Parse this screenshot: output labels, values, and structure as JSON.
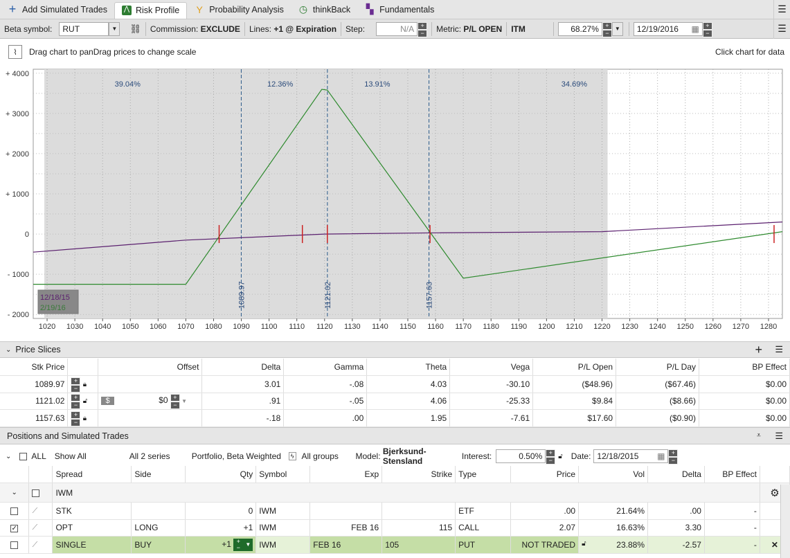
{
  "tabs": [
    {
      "label": "Add Simulated Trades",
      "icon": "plus-icon"
    },
    {
      "label": "Risk Profile",
      "icon": "risk-profile-icon"
    },
    {
      "label": "Probability Analysis",
      "icon": "probability-icon"
    },
    {
      "label": "thinkBack",
      "icon": "thinkback-icon"
    },
    {
      "label": "Fundamentals",
      "icon": "fundamentals-icon"
    }
  ],
  "controls": {
    "beta_label": "Beta symbol:",
    "beta_value": "RUT",
    "commission_label": "Commission:",
    "commission_value": "EXCLUDE",
    "lines_label": "Lines:",
    "lines_value": "+1 @ Expiration",
    "step_label": "Step:",
    "step_value": "N/A",
    "metric_label": "Metric:",
    "metric_value": "P/L OPEN",
    "itm": "ITM",
    "percent": "68.27%",
    "date": "12/19/2016"
  },
  "hint": {
    "left": "Drag chart to panDrag prices to change scale",
    "right": "Click chart for data"
  },
  "chart_data": {
    "type": "line",
    "xlim": [
      1015,
      1285
    ],
    "ylim": [
      -2100,
      4100
    ],
    "x_ticks": [
      1020,
      1030,
      1040,
      1050,
      1060,
      1070,
      1080,
      1090,
      1100,
      1110,
      1120,
      1130,
      1140,
      1150,
      1160,
      1170,
      1180,
      1190,
      1200,
      1210,
      1220,
      1230,
      1240,
      1250,
      1260,
      1270,
      1280
    ],
    "y_ticks": [
      {
        "v": 4000,
        "label": "+ 4000"
      },
      {
        "v": 3000,
        "label": "+ 3000"
      },
      {
        "v": 2000,
        "label": "+ 2000"
      },
      {
        "v": 1000,
        "label": "+ 1000"
      },
      {
        "v": 0,
        "label": "0"
      },
      {
        "v": -1000,
        "label": "- 1000"
      },
      {
        "v": -2000,
        "label": "- 2000"
      }
    ],
    "shaded_range": [
      1019,
      1222
    ],
    "series": [
      {
        "name": "12/18/15",
        "color": "#5a1f6e",
        "points": [
          [
            1015,
            -450
          ],
          [
            1070,
            -150
          ],
          [
            1120,
            0
          ],
          [
            1160,
            30
          ],
          [
            1220,
            60
          ],
          [
            1285,
            300
          ]
        ]
      },
      {
        "name": "2/19/16",
        "color": "#2e8a2e",
        "points": [
          [
            1015,
            -1250
          ],
          [
            1070,
            -1250
          ],
          [
            1119,
            3600
          ],
          [
            1121,
            3580
          ],
          [
            1170,
            -1100
          ],
          [
            1285,
            60
          ]
        ]
      }
    ],
    "slices": [
      {
        "x": 1089.97,
        "label": "1089.97"
      },
      {
        "x": 1121.02,
        "label": "1121.02"
      },
      {
        "x": 1157.63,
        "label": "1157.63"
      }
    ],
    "probabilities": [
      {
        "x": 1049,
        "label": "39.04%"
      },
      {
        "x": 1104,
        "label": "12.36%"
      },
      {
        "x": 1139,
        "label": "13.91%"
      },
      {
        "x": 1210,
        "label": "34.69%"
      }
    ],
    "markers": [
      1082,
      1112,
      1121,
      1158,
      1282
    ]
  },
  "price_slices": {
    "title": "Price Slices",
    "headers": [
      "Stk Price",
      "Offset",
      "Delta",
      "Gamma",
      "Theta",
      "Vega",
      "P/L Open",
      "P/L Day",
      "BP Effect"
    ],
    "rows": [
      {
        "price": "1089.97",
        "offset": "",
        "delta": "3.01",
        "gamma": "-.08",
        "theta": "4.03",
        "vega": "-30.10",
        "plopen": "($48.96)",
        "plday": "($67.46)",
        "bp": "$0.00"
      },
      {
        "price": "1121.02",
        "offset": "$0",
        "delta": ".91",
        "gamma": "-.05",
        "theta": "4.06",
        "vega": "-25.33",
        "plopen": "$9.84",
        "plday": "($8.66)",
        "bp": "$0.00"
      },
      {
        "price": "1157.63",
        "offset": "",
        "delta": "-.18",
        "gamma": ".00",
        "theta": "1.95",
        "vega": "-7.61",
        "plopen": "$17.60",
        "plday": "($0.90)",
        "bp": "$0.00"
      }
    ]
  },
  "positions": {
    "title": "Positions and Simulated Trades",
    "all": "ALL",
    "show": "Show All",
    "series": "All 2 series",
    "portfolio": "Portfolio, Beta Weighted",
    "groups": "All groups",
    "model_label": "Model:",
    "model": "Bjerksund-Stensland",
    "interest_label": "Interest:",
    "interest": "0.50%",
    "date_label": "Date:",
    "date": "12/18/2015",
    "headers": [
      "Spread",
      "Side",
      "Qty",
      "Symbol",
      "Exp",
      "Strike",
      "Type",
      "Price",
      "Vol",
      "Delta",
      "BP Effect"
    ],
    "group": "IWM",
    "rows": [
      {
        "spread": "STK",
        "side": "",
        "qty": "0",
        "symbol": "IWM",
        "exp": "",
        "strike": "",
        "type": "ETF",
        "price": ".00",
        "vol": "21.64%",
        "delta": ".00",
        "bp": "-",
        "checked": false
      },
      {
        "spread": "OPT",
        "side": "LONG",
        "qty": "+1",
        "symbol": "IWM",
        "exp": "FEB 16",
        "strike": "115",
        "type": "CALL",
        "price": "2.07",
        "vol": "16.63%",
        "delta": "3.30",
        "bp": "-",
        "checked": true
      },
      {
        "spread": "SINGLE",
        "side": "BUY",
        "qty": "+1",
        "symbol": "IWM",
        "exp": "FEB 16",
        "strike": "105",
        "type": "PUT",
        "price": "NOT TRADED",
        "vol": "23.88%",
        "delta": "-2.57",
        "bp": "-",
        "checked": false
      }
    ]
  }
}
